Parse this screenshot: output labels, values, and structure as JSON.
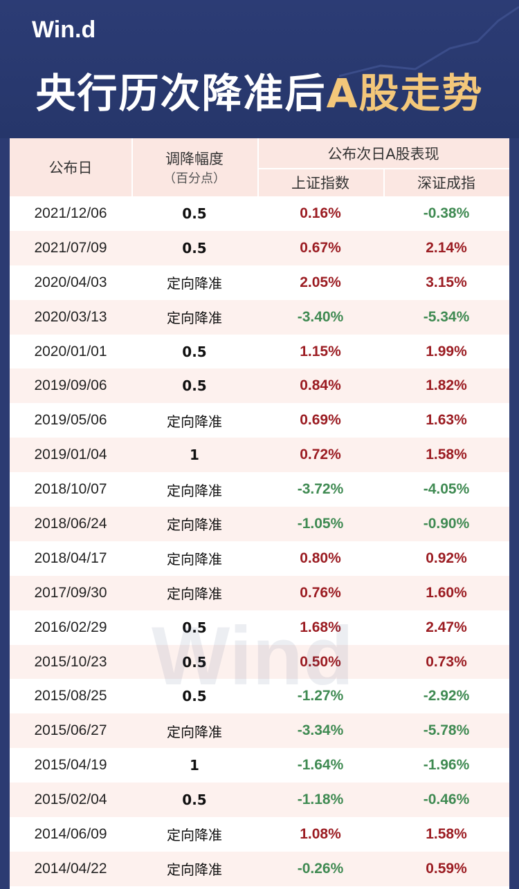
{
  "header": {
    "logo": "Win.d",
    "title_part1": "央行历次降准后",
    "title_part2": "A股走势"
  },
  "table": {
    "col_date": "公布日",
    "col_cut_line1": "调降幅度",
    "col_cut_line2": "（百分点）",
    "col_group": "公布次日A股表现",
    "col_sh": "上证指数",
    "col_sz": "深证成指"
  },
  "watermark": "Wind",
  "colors": {
    "positive": "#9b1c22",
    "negative": "#3f8a52",
    "header_bg": "#2a3a70",
    "accent_gold": "#f3c77a"
  },
  "rows": [
    {
      "date": "2021/12/06",
      "cut": "0.5",
      "sh": "0.16%",
      "sz": "-0.38%"
    },
    {
      "date": "2021/07/09",
      "cut": "0.5",
      "sh": "0.67%",
      "sz": "2.14%"
    },
    {
      "date": "2020/04/03",
      "cut": "定向降准",
      "sh": "2.05%",
      "sz": "3.15%"
    },
    {
      "date": "2020/03/13",
      "cut": "定向降准",
      "sh": "-3.40%",
      "sz": "-5.34%"
    },
    {
      "date": "2020/01/01",
      "cut": "0.5",
      "sh": "1.15%",
      "sz": "1.99%"
    },
    {
      "date": "2019/09/06",
      "cut": "0.5",
      "sh": "0.84%",
      "sz": "1.82%"
    },
    {
      "date": "2019/05/06",
      "cut": "定向降准",
      "sh": "0.69%",
      "sz": "1.63%"
    },
    {
      "date": "2019/01/04",
      "cut": "1",
      "sh": "0.72%",
      "sz": "1.58%"
    },
    {
      "date": "2018/10/07",
      "cut": "定向降准",
      "sh": "-3.72%",
      "sz": "-4.05%"
    },
    {
      "date": "2018/06/24",
      "cut": "定向降准",
      "sh": "-1.05%",
      "sz": "-0.90%"
    },
    {
      "date": "2018/04/17",
      "cut": "定向降准",
      "sh": "0.80%",
      "sz": "0.92%"
    },
    {
      "date": "2017/09/30",
      "cut": "定向降准",
      "sh": "0.76%",
      "sz": "1.60%"
    },
    {
      "date": "2016/02/29",
      "cut": "0.5",
      "sh": "1.68%",
      "sz": "2.47%"
    },
    {
      "date": "2015/10/23",
      "cut": "0.5",
      "sh": "0.50%",
      "sz": "0.73%"
    },
    {
      "date": "2015/08/25",
      "cut": "0.5",
      "sh": "-1.27%",
      "sz": "-2.92%"
    },
    {
      "date": "2015/06/27",
      "cut": "定向降准",
      "sh": "-3.34%",
      "sz": "-5.78%"
    },
    {
      "date": "2015/04/19",
      "cut": "1",
      "sh": "-1.64%",
      "sz": "-1.96%"
    },
    {
      "date": "2015/02/04",
      "cut": "0.5",
      "sh": "-1.18%",
      "sz": "-0.46%"
    },
    {
      "date": "2014/06/09",
      "cut": "定向降准",
      "sh": "1.08%",
      "sz": "1.58%"
    },
    {
      "date": "2014/04/22",
      "cut": "定向降准",
      "sh": "-0.26%",
      "sz": "0.59%"
    }
  ]
}
